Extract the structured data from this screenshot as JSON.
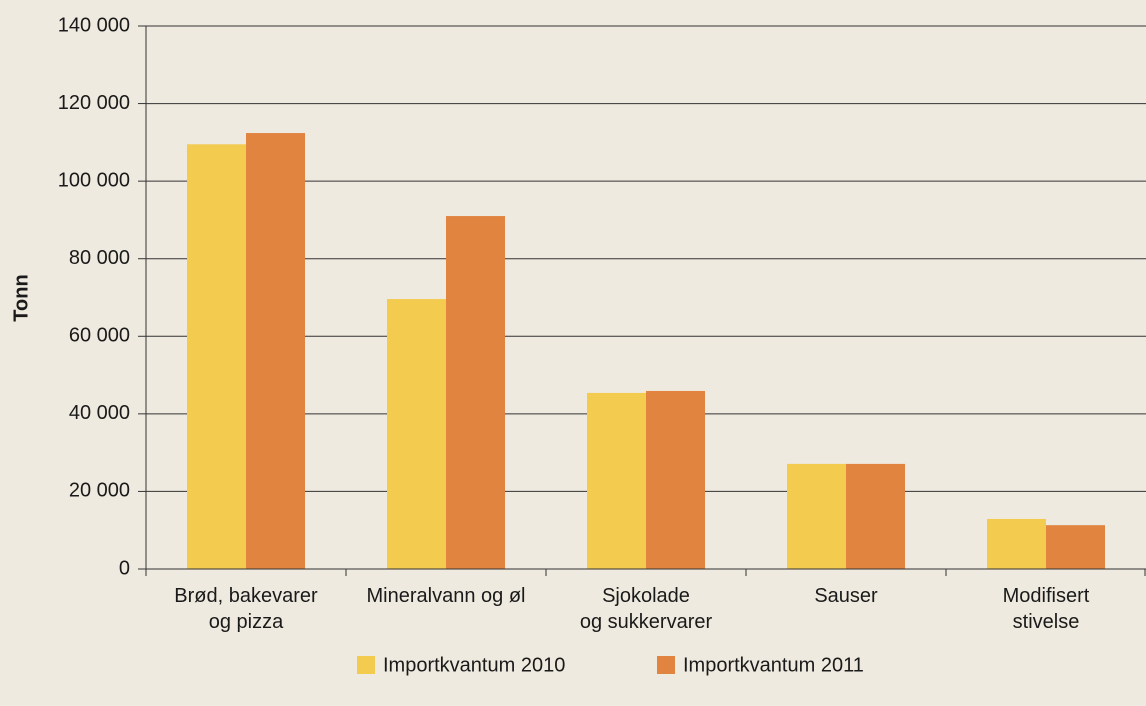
{
  "chart_data": {
    "type": "bar",
    "y_label": "Tonn",
    "categories": [
      [
        "Brød, bakevarer",
        "og pizza"
      ],
      [
        "Mineralvann og øl"
      ],
      [
        "Sjokolade",
        "og sukkervarer"
      ],
      [
        "Sauser"
      ],
      [
        "Modifisert",
        "stivelse"
      ]
    ],
    "series": [
      {
        "name": "Importkvantum 2010",
        "color": "#f2cb4f",
        "values": [
          109500,
          69600,
          45400,
          27100,
          12900
        ]
      },
      {
        "name": "Importkvantum 2011",
        "color": "#e08440",
        "values": [
          112400,
          91000,
          45900,
          27100,
          11300
        ]
      }
    ],
    "ylim": [
      0,
      140000
    ],
    "yticks": [
      0,
      {
        "value": 20000,
        "label": "20 000"
      },
      {
        "value": 40000,
        "label": "40 000"
      },
      {
        "value": 60000,
        "label": "60 000"
      },
      {
        "value": 80000,
        "label": "80 000"
      },
      {
        "value": 100000,
        "label": "100 000"
      },
      {
        "value": 120000,
        "label": "120 000"
      },
      {
        "value": 140000,
        "label": "140 000"
      }
    ],
    "grid": true
  }
}
